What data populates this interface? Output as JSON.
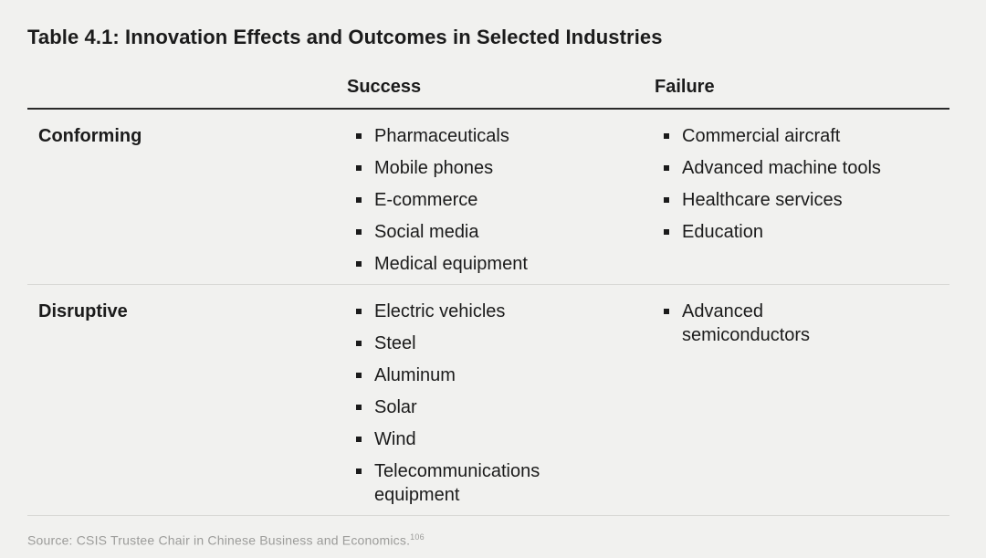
{
  "page": {
    "title": "Table 4.1: Innovation Effects and Outcomes in Selected Industries"
  },
  "table": {
    "columns": {
      "success": "Success",
      "failure": "Failure"
    },
    "rows": [
      {
        "label": "Conforming",
        "success": [
          "Pharmaceuticals",
          "Mobile phones",
          "E-commerce",
          "Social media",
          "Medical equipment"
        ],
        "failure": [
          "Commercial aircraft",
          "Advanced machine tools",
          "Healthcare services",
          "Education"
        ]
      },
      {
        "label": "Disruptive",
        "success": [
          "Electric vehicles",
          "Steel",
          "Aluminum",
          "Solar",
          "Wind",
          "Telecommunications equipment"
        ],
        "failure": [
          "Advanced semiconductors"
        ]
      }
    ]
  },
  "source": {
    "text": "Source: CSIS Trustee Chair in Chinese Business and Economics.",
    "footnote": "106"
  },
  "colors": {
    "background": "#f1f1ef",
    "text": "#1b1b1b",
    "header_rule": "#2a2a2a",
    "row_divider": "#d8d8d5",
    "source_text": "#9c9c9a",
    "bullet": "#1b1b1b"
  }
}
